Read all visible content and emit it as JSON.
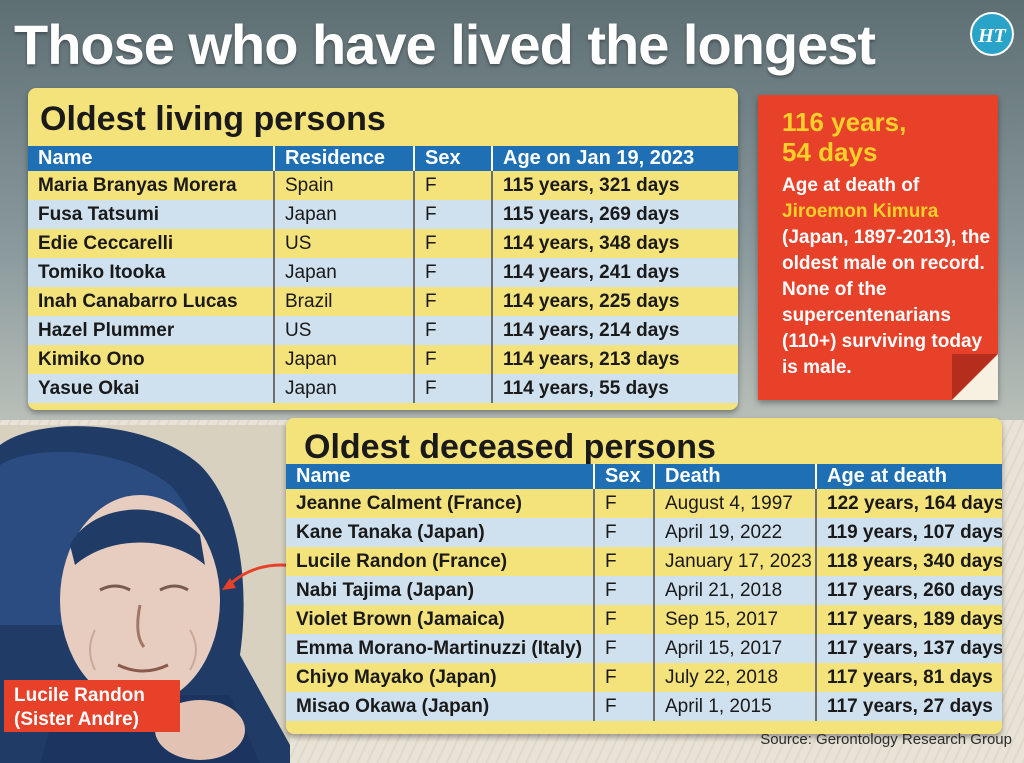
{
  "title": "Those who have lived the longest",
  "logo_text": "HT",
  "living": {
    "title": "Oldest living persons",
    "columns": [
      "Name",
      "Residence",
      "Sex",
      "Age on Jan 19, 2023"
    ],
    "rows": [
      [
        "Maria Branyas Morera",
        "Spain",
        "F",
        "115 years, 321 days"
      ],
      [
        "Fusa Tatsumi",
        "Japan",
        "F",
        "115 years, 269 days"
      ],
      [
        "Edie Ceccarelli",
        "US",
        "F",
        "114 years, 348 days"
      ],
      [
        "Tomiko Itooka",
        "Japan",
        "F",
        "114 years, 241 days"
      ],
      [
        "Inah Canabarro Lucas",
        "Brazil",
        "F",
        "114 years, 225 days"
      ],
      [
        "Hazel Plummer",
        "US",
        "F",
        "114 years, 214 days"
      ],
      [
        "Kimiko Ono",
        "Japan",
        "F",
        "114 years, 213 days"
      ],
      [
        "Yasue Okai",
        "Japan",
        "F",
        "114 years, 55 days"
      ]
    ]
  },
  "deceased": {
    "title": "Oldest deceased persons",
    "columns": [
      "Name",
      "Sex",
      "Death",
      "Age at death"
    ],
    "rows": [
      [
        "Jeanne Calment (France)",
        "F",
        "August 4, 1997",
        "122 years, 164 days"
      ],
      [
        "Kane Tanaka (Japan)",
        "F",
        "April 19, 2022",
        "119 years, 107 days"
      ],
      [
        "Lucile Randon (France)",
        "F",
        "January 17, 2023",
        "118 years, 340 days"
      ],
      [
        "Nabi Tajima (Japan)",
        "F",
        "April 21, 2018",
        "117 years, 260 days"
      ],
      [
        "Violet Brown (Jamaica)",
        "F",
        "Sep 15, 2017",
        "117 years, 189 days"
      ],
      [
        "Emma Morano-Martinuzzi (Italy)",
        "F",
        "April 15, 2017",
        "117 years, 137 days"
      ],
      [
        "Chiyo Mayako (Japan)",
        "F",
        "July 22, 2018",
        "117 years, 81 days"
      ],
      [
        "Misao Okawa (Japan)",
        "F",
        "April 1, 2015",
        "117 years, 27 days"
      ]
    ]
  },
  "fact": {
    "headline_line1": "116 years,",
    "headline_line2": "54 days",
    "text_before": "Age at death of ",
    "highlight": "Jiroemon Kimura",
    "text_after": " (Japan, 1897-2013), the oldest male on record. None of the supercentenarians (110+) surviving today is male."
  },
  "photo_label_line1": "Lucile Randon",
  "photo_label_line2": "(Sister Andre)",
  "source": "Source: Gerontology Research Group",
  "colors": {
    "header_blue": "#1e6fb3",
    "row_yellow": "#f4e27a",
    "row_blue": "#cfe0ef",
    "accent_red": "#e8412a",
    "accent_yellow": "#ffd02a"
  },
  "chart_data": {
    "type": "table",
    "title": "Those who have lived the longest",
    "tables": [
      {
        "title": "Oldest living persons",
        "columns": [
          "Name",
          "Residence",
          "Sex",
          "Age on Jan 19, 2023"
        ],
        "rows": [
          [
            "Maria Branyas Morera",
            "Spain",
            "F",
            "115 years, 321 days"
          ],
          [
            "Fusa Tatsumi",
            "Japan",
            "F",
            "115 years, 269 days"
          ],
          [
            "Edie Ceccarelli",
            "US",
            "F",
            "114 years, 348 days"
          ],
          [
            "Tomiko Itooka",
            "Japan",
            "F",
            "114 years, 241 days"
          ],
          [
            "Inah Canabarro Lucas",
            "Brazil",
            "F",
            "114 years, 225 days"
          ],
          [
            "Hazel Plummer",
            "US",
            "F",
            "114 years, 214 days"
          ],
          [
            "Kimiko Ono",
            "Japan",
            "F",
            "114 years, 213 days"
          ],
          [
            "Yasue Okai",
            "Japan",
            "F",
            "114 years, 55 days"
          ]
        ]
      },
      {
        "title": "Oldest deceased persons",
        "columns": [
          "Name",
          "Sex",
          "Death",
          "Age at death"
        ],
        "rows": [
          [
            "Jeanne Calment (France)",
            "F",
            "August 4, 1997",
            "122 years, 164 days"
          ],
          [
            "Kane Tanaka (Japan)",
            "F",
            "April 19, 2022",
            "119 years, 107 days"
          ],
          [
            "Lucile Randon (France)",
            "F",
            "January 17, 2023",
            "118 years, 340 days"
          ],
          [
            "Nabi Tajima (Japan)",
            "F",
            "April 21, 2018",
            "117 years, 260 days"
          ],
          [
            "Violet Brown (Jamaica)",
            "F",
            "Sep 15, 2017",
            "117 years, 189 days"
          ],
          [
            "Emma Morano-Martinuzzi (Italy)",
            "F",
            "April 15, 2017",
            "117 years, 137 days"
          ],
          [
            "Chiyo Mayako (Japan)",
            "F",
            "July 22, 2018",
            "117 years, 81 days"
          ],
          [
            "Misao Okawa (Japan)",
            "F",
            "April 1, 2015",
            "117 years, 27 days"
          ]
        ]
      }
    ]
  }
}
